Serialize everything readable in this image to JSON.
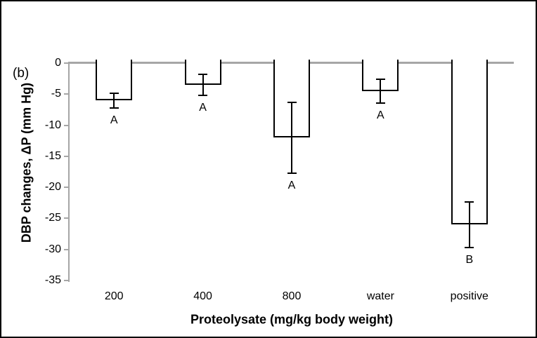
{
  "panel_label": "(b)",
  "chart_data": {
    "type": "bar",
    "title": "",
    "xlabel": "Proteolysate (mg/kg body weight)",
    "ylabel": "DBP changes, ΔP (mm Hg)",
    "categories": [
      "200",
      "400",
      "800",
      "water",
      "positive"
    ],
    "values": [
      -6,
      -3.5,
      -12,
      -4.5,
      -26
    ],
    "errors": [
      1.2,
      1.7,
      5.7,
      1.9,
      3.7
    ],
    "significance_letters": [
      "A",
      "A",
      "A",
      "A",
      "B"
    ],
    "ylim": [
      -35,
      0
    ],
    "yticks": [
      0,
      -5,
      -10,
      -15,
      -20,
      -25,
      -30,
      -35
    ],
    "grid": false,
    "legend_position": "none",
    "colors": {
      "bar_fill": "#ffffff",
      "bar_border": "#000000",
      "error_bar": "#000000",
      "axis_line": "#a6a6a6",
      "text": "#000000"
    }
  }
}
